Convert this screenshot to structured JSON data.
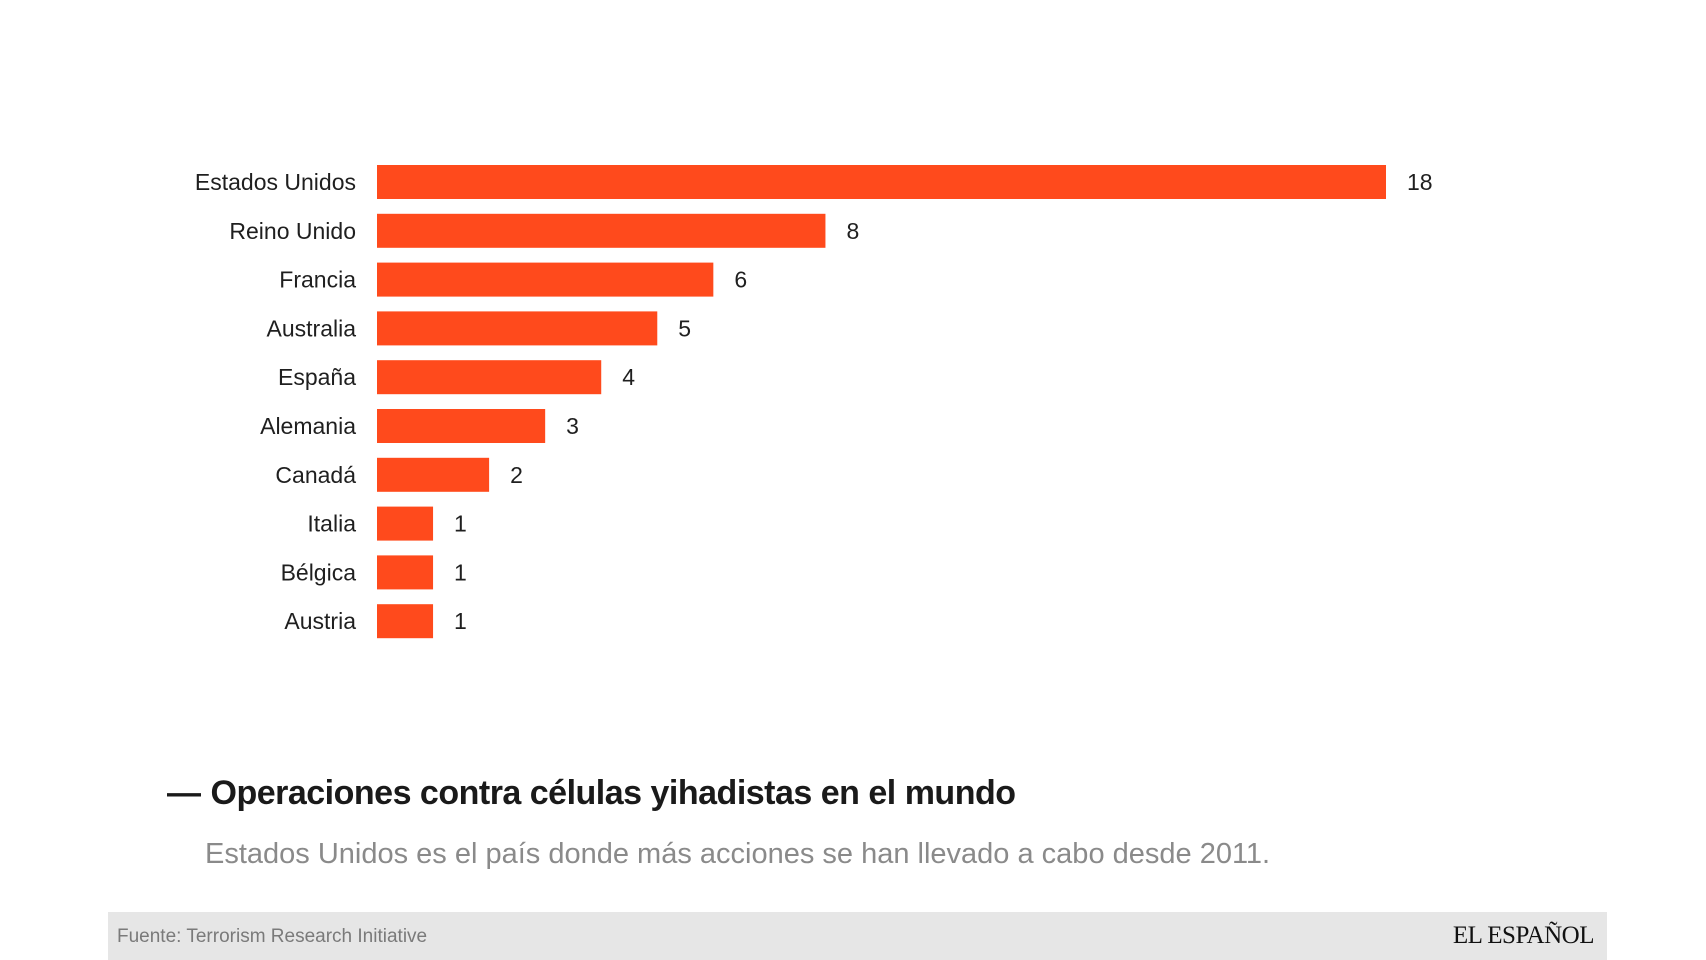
{
  "chart_data": {
    "type": "bar",
    "orientation": "horizontal",
    "categories": [
      "Estados Unidos",
      "Reino Unido",
      "Francia",
      "Australia",
      "España",
      "Alemania",
      "Canadá",
      "Italia",
      "Bélgica",
      "Austria"
    ],
    "values": [
      18,
      8,
      6,
      5,
      4,
      3,
      2,
      1,
      1,
      1
    ],
    "value_labels": [
      "18",
      "8",
      "6",
      "5",
      "4",
      "3",
      "2",
      "1",
      "1",
      "1"
    ],
    "xlim": [
      0,
      18
    ],
    "grid": false,
    "bar_color": "#ff4a1c"
  },
  "title": {
    "dash": "—",
    "text": "Operaciones contra células yihadistas en el mundo"
  },
  "subtitle": "Estados Unidos es el país donde más acciones se han llevado a cabo desde 2011.",
  "footer": {
    "source": "Fuente: Terrorism Research Initiative",
    "logo": "EL ESPAÑOL"
  }
}
